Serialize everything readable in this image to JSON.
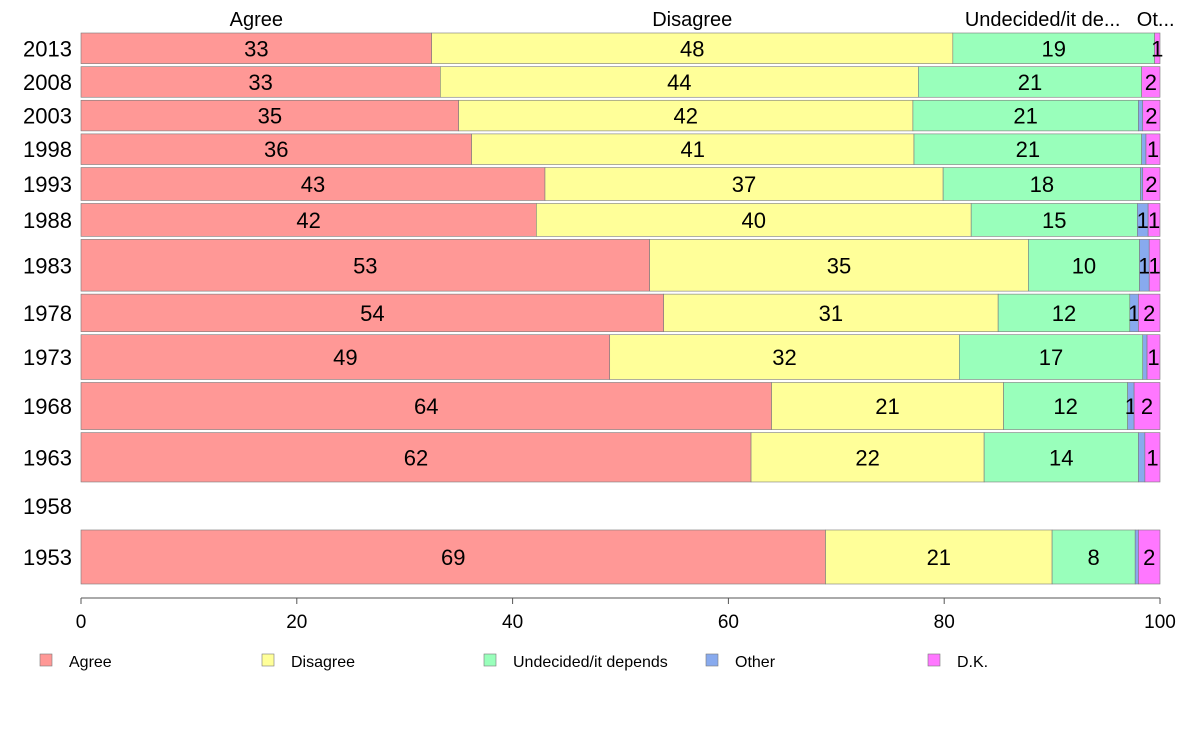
{
  "chart_data": {
    "type": "bar",
    "orientation": "horizontal",
    "stacked": true,
    "xlim": [
      0,
      100
    ],
    "x_ticks": [
      0,
      20,
      40,
      60,
      80,
      100
    ],
    "column_headers": [
      "Agree",
      "Disagree",
      "Undecided/it de...",
      "Ot..."
    ],
    "categories": [
      "2013",
      "2008",
      "2003",
      "1998",
      "1993",
      "1988",
      "1983",
      "1978",
      "1973",
      "1968",
      "1963",
      "1958",
      "1953"
    ],
    "series": [
      {
        "name": "Agree",
        "color": "#ff9896",
        "values": [
          32.5,
          33.3,
          35,
          36.2,
          43,
          42.2,
          52.7,
          54,
          49,
          64,
          62.1,
          null,
          69
        ]
      },
      {
        "name": "Disagree",
        "color": "#ffff99",
        "values": [
          48.3,
          44.3,
          42.1,
          41,
          36.9,
          40.3,
          35.1,
          31,
          32.4,
          21.5,
          21.6,
          null,
          21
        ]
      },
      {
        "name": "Undecided/it depends",
        "color": "#99ffbb",
        "values": [
          18.7,
          20.7,
          20.9,
          21.1,
          18.3,
          15.4,
          10.3,
          12.2,
          17,
          11.5,
          14.3,
          null,
          7.7
        ]
      },
      {
        "name": "Other",
        "color": "#88aaee",
        "values": [
          0,
          0,
          0.4,
          0.4,
          0.2,
          1,
          0.9,
          0.8,
          0.4,
          0.6,
          0.6,
          null,
          0.3
        ]
      },
      {
        "name": "D.K.",
        "color": "#ff77ff",
        "values": [
          0.5,
          1.7,
          1.6,
          1.3,
          1.6,
          1.1,
          1,
          2,
          1.2,
          2.4,
          1.4,
          null,
          2
        ]
      }
    ],
    "data_labels": [
      [
        "33",
        "48",
        "19",
        "",
        "1"
      ],
      [
        "33",
        "44",
        "21",
        "",
        "2"
      ],
      [
        "35",
        "42",
        "21",
        "",
        "2"
      ],
      [
        "36",
        "41",
        "21",
        "",
        "1"
      ],
      [
        "43",
        "37",
        "18",
        "",
        "2"
      ],
      [
        "42",
        "40",
        "15",
        "1",
        "1"
      ],
      [
        "53",
        "35",
        "10",
        "1",
        "1"
      ],
      [
        "54",
        "31",
        "12",
        "1",
        "2"
      ],
      [
        "49",
        "32",
        "17",
        "",
        "1"
      ],
      [
        "64",
        "21",
        "12",
        "1",
        "2"
      ],
      [
        "62",
        "22",
        "14",
        "",
        "1"
      ],
      [
        "",
        "",
        "",
        "",
        ""
      ],
      [
        "69",
        "21",
        "8",
        "",
        "2"
      ]
    ],
    "relative_bar_widths": [
      0.93,
      0.93,
      0.93,
      0.93,
      1.0,
      1.0,
      1.57,
      1.14,
      1.36,
      1.43,
      1.5,
      0,
      1.64
    ],
    "legend": [
      "Agree",
      "Disagree",
      "Undecided/it depends",
      "Other",
      "D.K."
    ],
    "legend_position": "bottom"
  }
}
